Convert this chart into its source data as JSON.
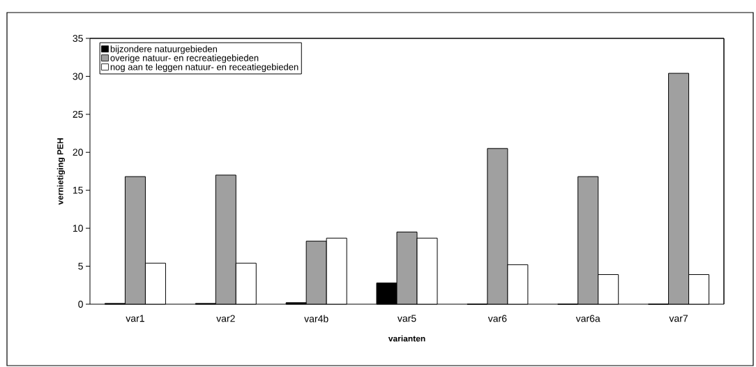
{
  "chart_data": {
    "type": "bar",
    "xlabel": "varianten",
    "ylabel": "vernietiging PEH",
    "categories": [
      "var1",
      "var2",
      "var4b",
      "var5",
      "var6",
      "var6a",
      "var7"
    ],
    "series": [
      {
        "name": "bijzondere natuurgebieden",
        "color": "#000000",
        "values": [
          0.1,
          0.1,
          0.2,
          2.8,
          0,
          0,
          0
        ]
      },
      {
        "name": "overige natuur- en recreatiegebieden",
        "color": "#a0a0a0",
        "values": [
          16.8,
          17.0,
          8.3,
          9.5,
          20.5,
          16.8,
          30.4
        ]
      },
      {
        "name": "nog aan te leggen natuur- en receatiegebieden",
        "color": "#ffffff",
        "values": [
          5.4,
          5.4,
          8.7,
          8.7,
          5.2,
          3.9,
          3.9
        ]
      }
    ],
    "ylim": [
      0,
      35
    ],
    "yticks": [
      0,
      5,
      10,
      15,
      20,
      25,
      30,
      35
    ],
    "legend": "top left"
  }
}
